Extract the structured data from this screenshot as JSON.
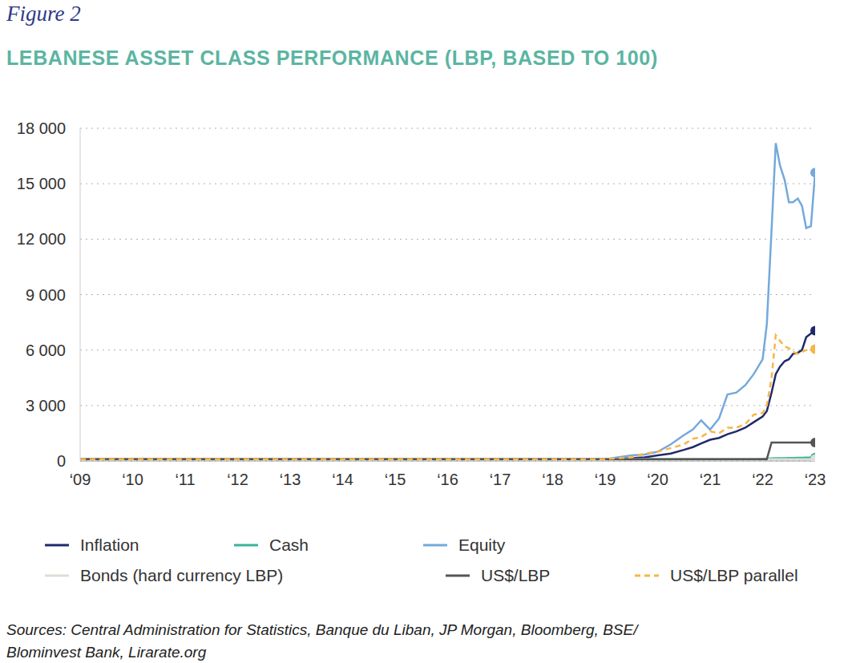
{
  "figure_label": "Figure 2",
  "source": "Sources: Central Administration for Statistics, Banque du Liban, JP Morgan, Bloomberg, BSE/ Blominvest Bank, Lirarate.org",
  "chart_data": {
    "type": "line",
    "title": "LEBANESE ASSET CLASS PERFORMANCE (LBP, BASED TO 100)",
    "x": [
      2009,
      2010,
      2011,
      2012,
      2013,
      2014,
      2015,
      2016,
      2017,
      2018,
      2019,
      2019.5,
      2019.75,
      2020,
      2020.25,
      2020.5,
      2020.67,
      2020.83,
      2021,
      2021.17,
      2021.33,
      2021.5,
      2021.67,
      2021.83,
      2022,
      2022.08,
      2022.17,
      2022.25,
      2022.33,
      2022.42,
      2022.5,
      2022.58,
      2022.67,
      2022.75,
      2022.83,
      2022.92,
      2023
    ],
    "xlim": [
      2009,
      2023
    ],
    "xticks": [
      {
        "value": 2009,
        "label": "‘09"
      },
      {
        "value": 2010,
        "label": "‘10"
      },
      {
        "value": 2011,
        "label": "‘11"
      },
      {
        "value": 2012,
        "label": "‘12"
      },
      {
        "value": 2013,
        "label": "‘13"
      },
      {
        "value": 2014,
        "label": "‘14"
      },
      {
        "value": 2015,
        "label": "‘15"
      },
      {
        "value": 2016,
        "label": "‘16"
      },
      {
        "value": 2017,
        "label": "‘17"
      },
      {
        "value": 2018,
        "label": "‘18"
      },
      {
        "value": 2019,
        "label": "‘19"
      },
      {
        "value": 2020,
        "label": "‘20"
      },
      {
        "value": 2021,
        "label": "‘21"
      },
      {
        "value": 2022,
        "label": "‘22"
      },
      {
        "value": 2023,
        "label": "‘23"
      }
    ],
    "ylim": [
      0,
      18000
    ],
    "yticks": [
      0,
      {
        "value": 3000,
        "label": "3 000"
      },
      {
        "value": 6000,
        "label": "6 000"
      },
      {
        "value": 9000,
        "label": "9 000"
      },
      {
        "value": 12000,
        "label": "12 000"
      },
      {
        "value": 15000,
        "label": "15 000"
      },
      {
        "value": 18000,
        "label": "18 000"
      }
    ],
    "grid": true,
    "legend": "bottom",
    "series": [
      {
        "name": "Inflation",
        "color": "#1f2a6b",
        "line_style": "solid",
        "marker": "end",
        "values": [
          100,
          100,
          100,
          100,
          100,
          100,
          100,
          100,
          100,
          100,
          100,
          150,
          200,
          300,
          400,
          600,
          750,
          950,
          1150,
          1250,
          1450,
          1600,
          1800,
          2100,
          2400,
          2700,
          3700,
          4700,
          5100,
          5400,
          5500,
          5800,
          5850,
          6000,
          6700,
          6900,
          7050
        ]
      },
      {
        "name": "Cash",
        "color": "#3bb39b",
        "line_style": "solid",
        "marker": "end",
        "values": [
          100,
          100,
          100,
          100,
          100,
          100,
          100,
          100,
          100,
          100,
          100,
          100,
          100,
          100,
          100,
          100,
          100,
          100,
          100,
          100,
          100,
          100,
          100,
          100,
          120,
          130,
          140,
          150,
          150,
          150,
          160,
          160,
          170,
          170,
          180,
          180,
          180
        ]
      },
      {
        "name": "Equity",
        "color": "#74a9dc",
        "line_style": "solid",
        "marker": "end",
        "values": [
          100,
          100,
          100,
          100,
          100,
          100,
          100,
          100,
          100,
          100,
          100,
          300,
          350,
          500,
          900,
          1400,
          1700,
          2200,
          1700,
          2300,
          3600,
          3700,
          4100,
          4700,
          5500,
          7400,
          12500,
          17200,
          16000,
          15200,
          14000,
          14000,
          14200,
          13800,
          12600,
          12700,
          15600
        ]
      },
      {
        "name": "Bonds (hard currency LBP)",
        "color": "#deded6",
        "line_style": "solid",
        "marker": "end",
        "values": [
          100,
          100,
          100,
          100,
          100,
          100,
          100,
          100,
          100,
          100,
          100,
          100,
          100,
          100,
          100,
          100,
          100,
          100,
          100,
          100,
          100,
          100,
          100,
          100,
          100,
          100,
          100,
          100,
          100,
          100,
          100,
          100,
          100,
          100,
          100,
          100,
          100
        ]
      },
      {
        "name": "US$/LBP",
        "color": "#555555",
        "line_style": "solid",
        "marker": "end",
        "values": [
          100,
          100,
          100,
          100,
          100,
          100,
          100,
          100,
          100,
          100,
          100,
          100,
          100,
          100,
          100,
          100,
          100,
          100,
          100,
          100,
          100,
          100,
          100,
          100,
          100,
          100,
          1000,
          1000,
          1000,
          1000,
          1000,
          1000,
          1000,
          1000,
          1000,
          1000,
          1000
        ]
      },
      {
        "name": "US$/LBP parallel",
        "color": "#f7b548",
        "line_style": "dashed",
        "marker": "end",
        "values": [
          100,
          100,
          100,
          100,
          100,
          100,
          100,
          100,
          100,
          100,
          100,
          200,
          400,
          500,
          700,
          900,
          1200,
          1300,
          1600,
          1500,
          1800,
          1800,
          2000,
          2500,
          2600,
          3000,
          4500,
          6800,
          6500,
          6200,
          6100,
          5900,
          5800,
          5900,
          6000,
          6000,
          6050
        ]
      }
    ]
  }
}
